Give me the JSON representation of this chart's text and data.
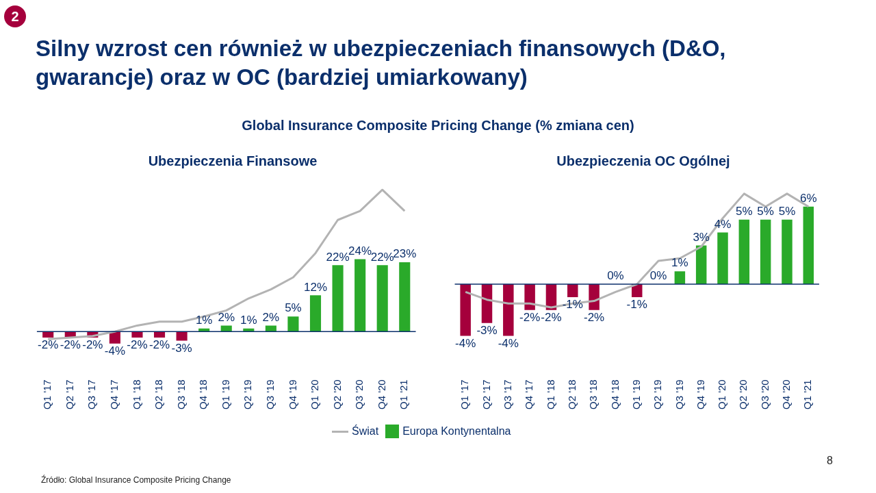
{
  "chart_data": [
    {
      "type": "other",
      "title": "Silny wzrost cen również w ubezpieczeniach finansowych (D&O, gwarancje) oraz w OC (bardziej umiarkowany)",
      "subtitle": "Global Insurance Composite Pricing Change (% zmiana cen)",
      "annotations": [
        "2",
        "Źródło: Global Insurance Composite Pricing Change",
        "8"
      ]
    },
    {
      "type": "bar",
      "title": "Ubezpieczenia Finansowe",
      "tick_labels": "x",
      "ref_lines": [
        {
          "axis": "y",
          "value": 0,
          "color": "#0b2f6b"
        }
      ],
      "grid": false,
      "marker": "none",
      "categories": [
        "Q1 '17",
        "Q2 '17",
        "Q3 '17",
        "Q4 '17",
        "Q1 '18",
        "Q2 '18",
        "Q3 '18",
        "Q4 '18",
        "Q1 '19",
        "Q2 '19",
        "Q3 '19",
        "Q4 '19",
        "Q1 '20",
        "Q2 '20",
        "Q3 '20",
        "Q4 '20",
        "Q1 '21"
      ],
      "series": [
        {
          "type": "line",
          "color": "#b3b3b3",
          "values": [
            -2.5,
            -2,
            -1.5,
            0,
            2,
            3.3,
            3.3,
            5,
            7,
            11,
            14,
            18,
            26,
            37,
            40,
            47,
            40
          ]
        },
        {
          "type": "bar",
          "colors": [
            "#a5003c",
            "#a5003c",
            "#a5003c",
            "#a5003c",
            "#a5003c",
            "#a5003c",
            "#a5003c",
            "#2aaa2a",
            "#2aaa2a",
            "#2aaa2a",
            "#2aaa2a",
            "#2aaa2a",
            "#2aaa2a",
            "#2aaa2a",
            "#2aaa2a",
            "#2aaa2a",
            "#2aaa2a"
          ],
          "values": [
            -2,
            -2,
            -2,
            -4,
            -2,
            -2,
            -3,
            1,
            2,
            1,
            2,
            5,
            12,
            22,
            24,
            22,
            23
          ],
          "value_labels": [
            "-2%",
            "-2%",
            "-2%",
            "-4%",
            "-2%",
            "-2%",
            "-3%",
            "1%",
            "2%",
            "1%",
            "2%",
            "5%",
            "12%",
            "22%",
            "24%",
            "22%",
            "23%"
          ]
        }
      ]
    },
    {
      "type": "bar",
      "title": "Ubezpieczenia OC Ogólnej",
      "tick_labels": "x",
      "ref_lines": [
        {
          "axis": "y",
          "value": 0,
          "color": "#0b2f6b"
        }
      ],
      "grid": false,
      "marker": "none",
      "legend": "bottom",
      "categories": [
        "Q1 '17",
        "Q2 '17",
        "Q3 '17",
        "Q4 '17",
        "Q1 '18",
        "Q2 '18",
        "Q3 '18",
        "Q4 '18",
        "Q1 '19",
        "Q2 '19",
        "Q3 '19",
        "Q4 '19",
        "Q1 '20",
        "Q2 '20",
        "Q3 '20",
        "Q4 '20",
        "Q1 '21"
      ],
      "series": [
        {
          "type": "line",
          "name": "Świat",
          "color": "#b3b3b3",
          "values": [
            -0.6,
            -1.2,
            -1.5,
            -1.5,
            -1.8,
            -1.5,
            -1.3,
            -0.6,
            0,
            1.8,
            2,
            2.9,
            5.1,
            7,
            6,
            7,
            6
          ]
        },
        {
          "type": "bar",
          "name": "Europa Kontynentalna",
          "color": "#2aaa2a",
          "colors": [
            "#a5003c",
            "#a5003c",
            "#a5003c",
            "#a5003c",
            "#a5003c",
            "#a5003c",
            "#a5003c",
            "#a5003c",
            "#a5003c",
            "#a5003c",
            "#2aaa2a",
            "#2aaa2a",
            "#2aaa2a",
            "#2aaa2a",
            "#2aaa2a",
            "#2aaa2a",
            "#2aaa2a"
          ],
          "values": [
            -4,
            -3,
            -4,
            -2,
            -2,
            -1,
            -2,
            0,
            -1,
            0,
            1,
            3,
            4,
            5,
            5,
            5,
            6
          ],
          "value_labels": [
            "-4%",
            "-3%",
            "-4%",
            "-2%",
            "-2%",
            "-1%",
            "-2%",
            "0%",
            "-1%",
            "0%",
            "1%",
            "3%",
            "4%",
            "5%",
            "5%",
            "5%",
            "6%"
          ]
        }
      ]
    }
  ]
}
